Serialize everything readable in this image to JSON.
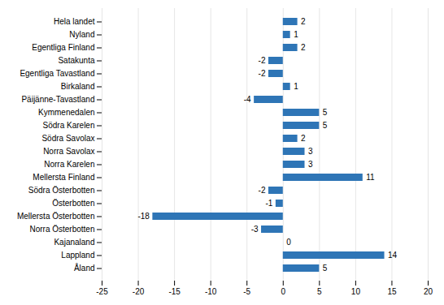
{
  "chart_data": {
    "type": "bar",
    "orientation": "horizontal",
    "categories": [
      "Hela landet",
      "Nyland",
      "Egentliga Finland",
      "Satakunta",
      "Egentliga Tavastland",
      "Birkaland",
      "Päijänne-Tavastland",
      "Kymmenedalen",
      "Södra Karelen",
      "Södra Savolax",
      "Norra Savolax",
      "Norra Karelen",
      "Mellersta Finland",
      "Södra Österbotten",
      "Österbotten",
      "Mellersta Österbotten",
      "Norra Österbotten",
      "Kajanaland",
      "Lappland",
      "Åland"
    ],
    "values": [
      2,
      1,
      2,
      -2,
      -2,
      1,
      -4,
      5,
      5,
      2,
      3,
      3,
      11,
      -2,
      -1,
      -18,
      -3,
      0,
      14,
      5
    ],
    "color": "#2E75B6",
    "xlim": [
      -25,
      20
    ],
    "xticks": [
      -25,
      -20,
      -15,
      -10,
      -5,
      0,
      5,
      10,
      15,
      20
    ],
    "grid": true,
    "data_labels": true
  }
}
